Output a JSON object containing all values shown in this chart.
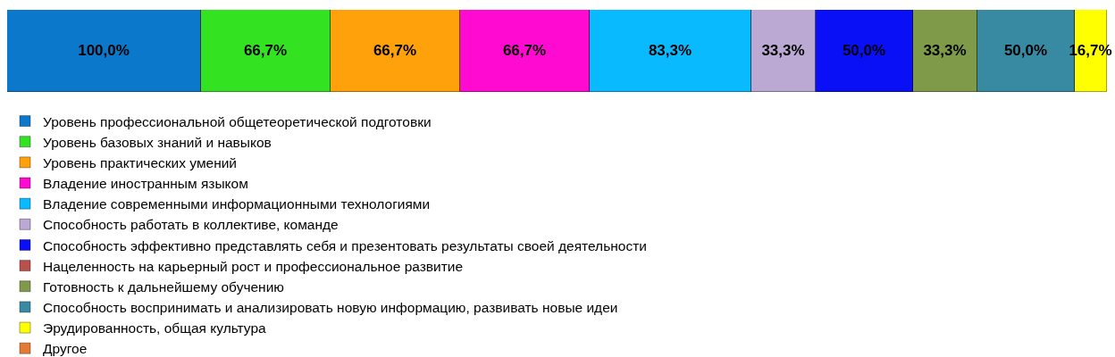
{
  "chart_data": {
    "type": "bar",
    "orientation": "horizontal",
    "stacked": true,
    "categories": [
      null
    ],
    "xlim": [
      0,
      566.7
    ],
    "tick_labels": false,
    "legend": "bottom",
    "series": [
      {
        "name": "Уровень профессиональной общетеоретической подготовки",
        "color": "#0b78cc",
        "values": [
          100.0
        ],
        "value_labels": [
          "100,0%"
        ]
      },
      {
        "name": "Уровень базовых знаний и навыков",
        "color": "#33e321",
        "values": [
          66.7
        ],
        "value_labels": [
          "66,7%"
        ]
      },
      {
        "name": "Уровень практических умений",
        "color": "#ffa10a",
        "values": [
          66.7
        ],
        "value_labels": [
          "66,7%"
        ]
      },
      {
        "name": "Владение иностранным языком",
        "color": "#ff0ad0",
        "values": [
          66.7
        ],
        "value_labels": [
          "66,7%"
        ]
      },
      {
        "name": "Владение современными информационными технологиями",
        "color": "#0abaff",
        "values": [
          83.3
        ],
        "value_labels": [
          "83,3%"
        ]
      },
      {
        "name": "Способность работать в коллективе, команде",
        "color": "#bba8d3",
        "values": [
          33.3
        ],
        "value_labels": [
          "33,3%"
        ]
      },
      {
        "name": "Способность эффективно представлять себя и презентовать результаты своей деятельности",
        "color": "#0a10f5",
        "values": [
          50.0
        ],
        "value_labels": [
          "50,0%"
        ]
      },
      {
        "name": "Нацеленность на карьерный рост и профессиональное развитие",
        "color": "#b8504c",
        "values": [
          null
        ],
        "value_labels": [
          null
        ]
      },
      {
        "name": "Готовность к дальнейшему обучению",
        "color": "#7f9a48",
        "values": [
          33.3
        ],
        "value_labels": [
          "33,3%"
        ]
      },
      {
        "name": "Способность воспринимать и анализировать новую информацию, развивать новые идеи",
        "color": "#378aa2",
        "values": [
          50.0
        ],
        "value_labels": [
          "50,0%"
        ]
      },
      {
        "name": "Эрудированность, общая культура",
        "color": "#ffff00",
        "values": [
          16.7
        ],
        "value_labels": [
          "16,7%"
        ]
      },
      {
        "name": "Другое",
        "color": "#e57a35",
        "values": [
          null
        ],
        "value_labels": [
          null
        ]
      }
    ]
  }
}
